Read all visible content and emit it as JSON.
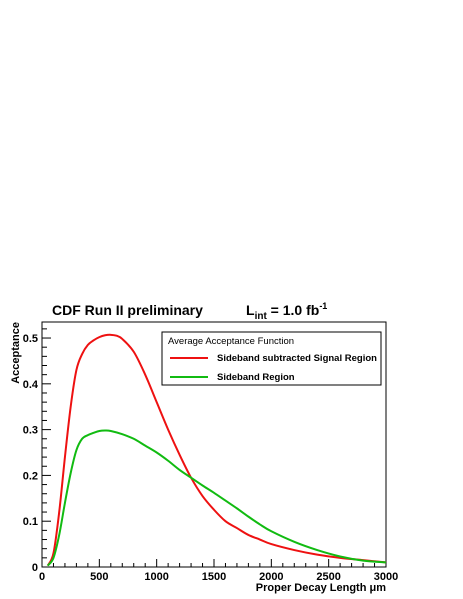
{
  "chart_data": {
    "type": "line",
    "header": {
      "left": "CDF Run II  preliminary",
      "lumi_prefix": "L",
      "lumi_sub": "int",
      "lumi_mid": " = 1.0 fb",
      "lumi_sup": "-1"
    },
    "xlabel": "Proper Decay Length μm",
    "ylabel": "Acceptance",
    "xlim": [
      0,
      3000
    ],
    "ylim": [
      0,
      0.535
    ],
    "xticks": [
      0,
      500,
      1000,
      1500,
      2000,
      2500,
      3000
    ],
    "yticks": [
      0,
      0.1,
      0.2,
      0.3,
      0.4,
      0.5
    ],
    "ytick_labels": [
      "0",
      "0.1",
      "0.2",
      "0.3",
      "0.4",
      "0.5"
    ],
    "legend": {
      "title": "Average Acceptance Function",
      "placement": "top-right"
    },
    "series": [
      {
        "name": "Sideband subtracted Signal Region",
        "color": "#ee1111",
        "x": [
          50,
          100,
          150,
          200,
          250,
          300,
          350,
          400,
          450,
          500,
          550,
          600,
          650,
          700,
          800,
          900,
          1000,
          1100,
          1200,
          1300,
          1400,
          1500,
          1600,
          1700,
          1800,
          1900,
          2000,
          2200,
          2400,
          2600,
          2800,
          3000
        ],
        "y": [
          0.003,
          0.03,
          0.12,
          0.24,
          0.35,
          0.43,
          0.465,
          0.485,
          0.495,
          0.502,
          0.506,
          0.507,
          0.505,
          0.498,
          0.47,
          0.42,
          0.36,
          0.3,
          0.245,
          0.195,
          0.155,
          0.125,
          0.1,
          0.085,
          0.07,
          0.06,
          0.05,
          0.037,
          0.027,
          0.02,
          0.015,
          0.01
        ]
      },
      {
        "name": "Sideband Region",
        "color": "#11bb11",
        "x": [
          50,
          100,
          150,
          200,
          250,
          300,
          350,
          400,
          450,
          500,
          550,
          600,
          700,
          800,
          900,
          1000,
          1100,
          1200,
          1300,
          1400,
          1500,
          1600,
          1700,
          1800,
          1900,
          2000,
          2200,
          2400,
          2600,
          2800,
          3000
        ],
        "y": [
          0.003,
          0.02,
          0.07,
          0.14,
          0.205,
          0.255,
          0.28,
          0.288,
          0.293,
          0.297,
          0.298,
          0.297,
          0.29,
          0.28,
          0.265,
          0.25,
          0.232,
          0.212,
          0.195,
          0.178,
          0.162,
          0.145,
          0.128,
          0.11,
          0.093,
          0.078,
          0.055,
          0.037,
          0.023,
          0.014,
          0.01
        ]
      }
    ]
  }
}
